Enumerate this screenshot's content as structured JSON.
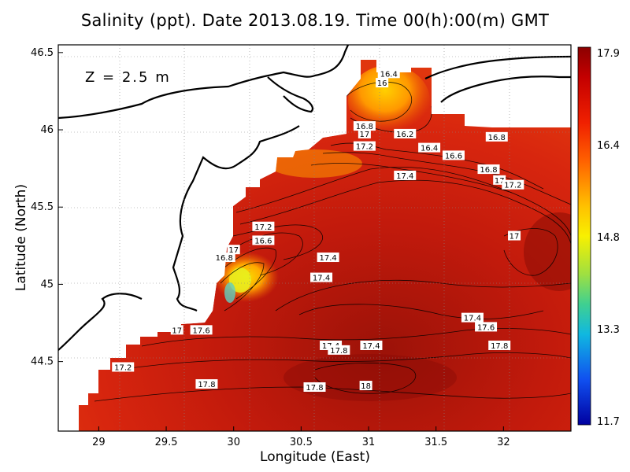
{
  "title": "Salinity (ppt). Date 2013.08.19. Time 00(h):00(m) GMT",
  "depth_label": "Z = 2.5 m",
  "axes": {
    "xlabel": "Longitude (East)",
    "ylabel": "Latitude (North)",
    "xticks": [
      "29",
      "29.5",
      "30",
      "30.5",
      "31",
      "31.5",
      "32"
    ],
    "yticks": [
      "44.5",
      "45",
      "45.5",
      "46",
      "46.5"
    ],
    "xlim": [
      28.7,
      32.5
    ],
    "ylim": [
      44.05,
      46.55
    ]
  },
  "colorbar": {
    "ticks": [
      "17.9",
      "16.4",
      "14.8",
      "13.3",
      "11.7"
    ],
    "range": [
      11.7,
      17.9
    ]
  },
  "contour_labels": [
    {
      "text": "16.4",
      "lon": 31.15,
      "lat": 46.36
    },
    {
      "text": "16",
      "lon": 31.1,
      "lat": 46.3
    },
    {
      "text": "16.8",
      "lon": 30.97,
      "lat": 46.02
    },
    {
      "text": "17",
      "lon": 30.97,
      "lat": 45.97
    },
    {
      "text": "16.2",
      "lon": 31.27,
      "lat": 45.97
    },
    {
      "text": "17.2",
      "lon": 30.97,
      "lat": 45.89
    },
    {
      "text": "16.4",
      "lon": 31.45,
      "lat": 45.88
    },
    {
      "text": "16.6",
      "lon": 31.63,
      "lat": 45.83
    },
    {
      "text": "16.8",
      "lon": 31.95,
      "lat": 45.95
    },
    {
      "text": "17.4",
      "lon": 31.27,
      "lat": 45.7
    },
    {
      "text": "16.8",
      "lon": 31.89,
      "lat": 45.74
    },
    {
      "text": "17",
      "lon": 31.97,
      "lat": 45.67
    },
    {
      "text": "17.2",
      "lon": 32.07,
      "lat": 45.64
    },
    {
      "text": "17.2",
      "lon": 30.22,
      "lat": 45.37
    },
    {
      "text": "16.6",
      "lon": 30.22,
      "lat": 45.28
    },
    {
      "text": "17",
      "lon": 30.0,
      "lat": 45.22
    },
    {
      "text": "16.8",
      "lon": 29.93,
      "lat": 45.17
    },
    {
      "text": "17.4",
      "lon": 30.7,
      "lat": 45.17
    },
    {
      "text": "17",
      "lon": 32.08,
      "lat": 45.31
    },
    {
      "text": "17.4",
      "lon": 30.65,
      "lat": 45.04
    },
    {
      "text": "17.4",
      "lon": 31.77,
      "lat": 44.78
    },
    {
      "text": "17.6",
      "lon": 31.87,
      "lat": 44.72
    },
    {
      "text": "17.6",
      "lon": 29.76,
      "lat": 44.7
    },
    {
      "text": "17",
      "lon": 29.58,
      "lat": 44.7
    },
    {
      "text": "17.4",
      "lon": 30.72,
      "lat": 44.6
    },
    {
      "text": "17.8",
      "lon": 30.78,
      "lat": 44.57
    },
    {
      "text": "17.4",
      "lon": 31.02,
      "lat": 44.6
    },
    {
      "text": "17.8",
      "lon": 31.97,
      "lat": 44.6
    },
    {
      "text": "17.2",
      "lon": 29.18,
      "lat": 44.46
    },
    {
      "text": "17.8",
      "lon": 29.8,
      "lat": 44.35
    },
    {
      "text": "17.8",
      "lon": 30.6,
      "lat": 44.33
    },
    {
      "text": "18",
      "lon": 30.98,
      "lat": 44.34
    }
  ]
}
